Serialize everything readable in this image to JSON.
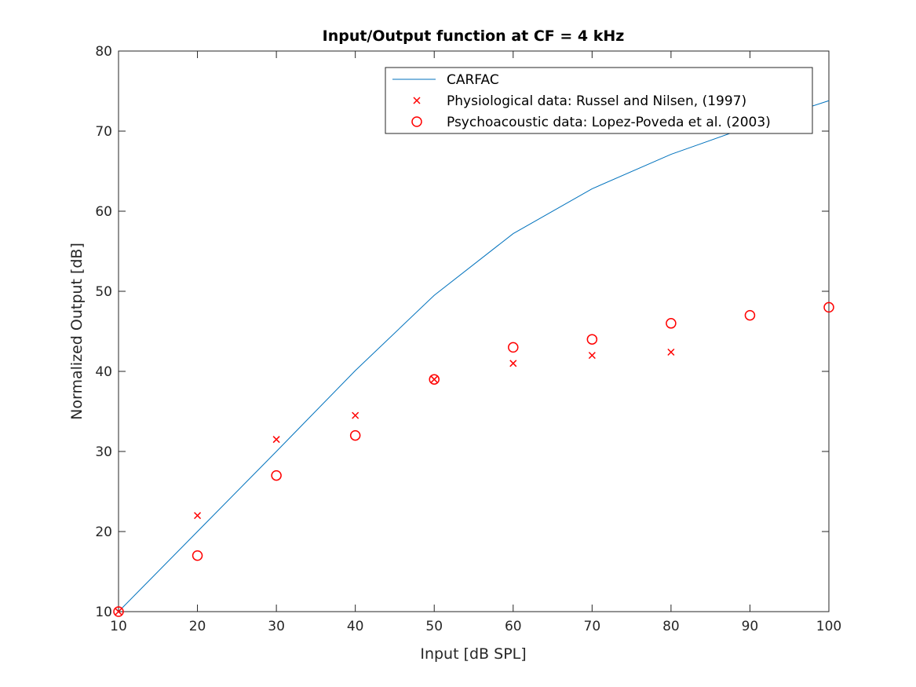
{
  "chart_data": {
    "type": "line",
    "title": "Input/Output function at CF = 4 kHz",
    "xlabel": "Input [dB SPL]",
    "ylabel": "Normalized Output [dB]",
    "xlim": [
      10,
      100
    ],
    "ylim": [
      10,
      80
    ],
    "xticks": [
      10,
      20,
      30,
      40,
      50,
      60,
      70,
      80,
      90,
      100
    ],
    "yticks": [
      10,
      20,
      30,
      40,
      50,
      60,
      70,
      80
    ],
    "grid": false,
    "legend_position": "top-right",
    "series": [
      {
        "name": "CARFAC",
        "type": "line",
        "color": "#0072bd",
        "x": [
          10,
          20,
          30,
          40,
          50,
          60,
          70,
          80,
          90,
          100
        ],
        "y": [
          10,
          20,
          30,
          40.1,
          49.5,
          57.2,
          62.8,
          67.1,
          70.6,
          73.8
        ]
      },
      {
        "name": "Physiological data: Russel and Nilsen, (1997)",
        "type": "scatter",
        "marker": "x",
        "color": "#ff0000",
        "x": [
          10,
          20,
          30,
          40,
          50,
          60,
          70,
          80
        ],
        "y": [
          10,
          22,
          31.5,
          34.5,
          39,
          41,
          42,
          42.4
        ]
      },
      {
        "name": "Psychoacoustic data: Lopez-Poveda et al. (2003)",
        "type": "scatter",
        "marker": "o",
        "color": "#ff0000",
        "x": [
          10,
          20,
          30,
          40,
          50,
          60,
          70,
          80,
          90,
          100
        ],
        "y": [
          10,
          17,
          27,
          32,
          39,
          43,
          44,
          46,
          47,
          48
        ]
      }
    ]
  }
}
